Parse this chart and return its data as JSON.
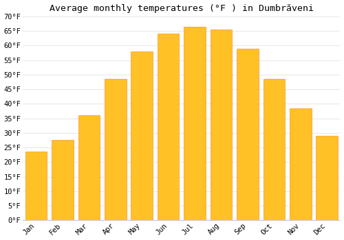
{
  "title": "Average monthly temperatures (°F ) in Dumbrăveni",
  "months": [
    "Jan",
    "Feb",
    "Mar",
    "Apr",
    "May",
    "Jun",
    "Jul",
    "Aug",
    "Sep",
    "Oct",
    "Nov",
    "Dec"
  ],
  "values": [
    23.5,
    27.5,
    36,
    48.5,
    58,
    64,
    66.5,
    65.5,
    59,
    48.5,
    38.5,
    29
  ],
  "bar_color": "#FFC125",
  "bar_edge_color": "#FFA040",
  "ylim": [
    0,
    70
  ],
  "yticks": [
    0,
    5,
    10,
    15,
    20,
    25,
    30,
    35,
    40,
    45,
    50,
    55,
    60,
    65,
    70
  ],
  "ytick_labels": [
    "0°F",
    "5°F",
    "10°F",
    "15°F",
    "20°F",
    "25°F",
    "30°F",
    "35°F",
    "40°F",
    "45°F",
    "50°F",
    "55°F",
    "60°F",
    "65°F",
    "70°F"
  ],
  "background_color": "#ffffff",
  "grid_color": "#e8e8e8",
  "title_fontsize": 9.5,
  "tick_fontsize": 7.5,
  "font_family": "monospace",
  "bar_width": 0.82,
  "figsize": [
    5.0,
    3.5
  ],
  "dpi": 100
}
